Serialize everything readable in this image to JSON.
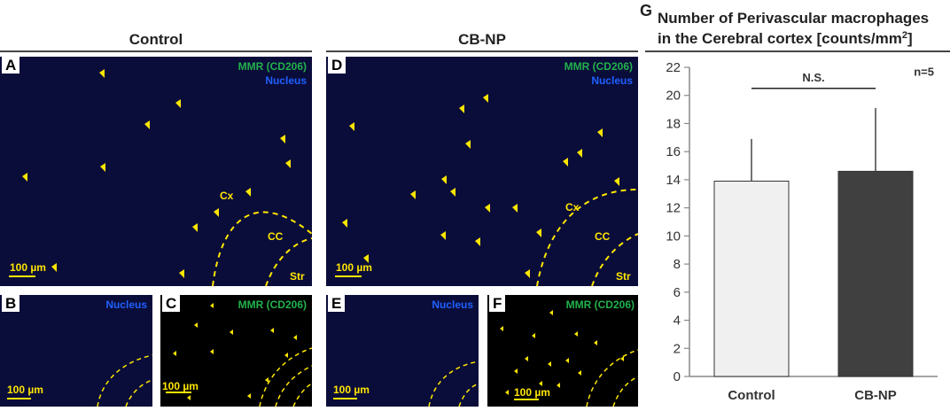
{
  "headers": {
    "control": "Control",
    "cbnp": "CB-NP"
  },
  "panels": {
    "A": {
      "letter": "A",
      "mmr": "MMR (CD206)",
      "nucleus": "Nucleus",
      "cx": "Cx",
      "cc": "CC",
      "str": "Str",
      "scale": "100 µm"
    },
    "B": {
      "letter": "B",
      "nucleus": "Nucleus",
      "scale": "100 µm"
    },
    "C": {
      "letter": "C",
      "mmr": "MMR (CD206)",
      "scale": "100 µm"
    },
    "D": {
      "letter": "D",
      "mmr": "MMR (CD206)",
      "nucleus": "Nucleus",
      "cx": "Cx",
      "cc": "CC",
      "str": "Str",
      "scale": "100 µm"
    },
    "E": {
      "letter": "E",
      "nucleus": "Nucleus",
      "scale": "100 µm"
    },
    "F": {
      "letter": "F",
      "mmr": "MMR (CD206)",
      "scale": "100 µm"
    }
  },
  "colors": {
    "mmr": "#22b14c",
    "nucleus": "#2060ff",
    "annotation": "#ffe600",
    "bar_control": "#f0f0f0",
    "bar_cbnp": "#404040"
  },
  "chart_data": {
    "type": "bar",
    "panel_letter": "G",
    "title_line1": "Number of Perivascular macrophages",
    "title_line2": "in the Cerebral cortex [counts/mm",
    "title_sup": "2",
    "title_end": "]",
    "categories": [
      "Control",
      "CB-NP"
    ],
    "values": [
      13.9,
      14.6
    ],
    "error_upper": [
      3.0,
      4.5
    ],
    "ylim": [
      0,
      22
    ],
    "yticks": [
      0,
      2,
      4,
      6,
      8,
      10,
      12,
      14,
      16,
      18,
      20,
      22
    ],
    "annotation": "N.S.",
    "n_label": "n=5"
  }
}
